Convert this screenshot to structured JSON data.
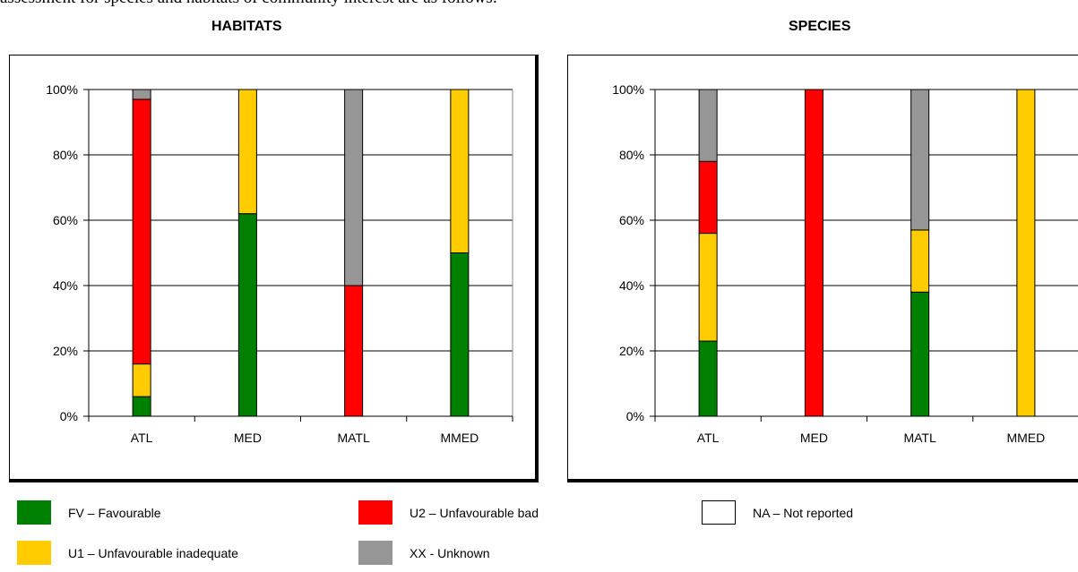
{
  "intro_text": "assessment for species and habitats of community interest are as follows:",
  "colors": {
    "FV": "#008000",
    "U1": "#FFCC00",
    "U2": "#FF0000",
    "XX": "#969696",
    "NA": "#FFFFFF"
  },
  "legend": [
    {
      "key": "FV",
      "label": "FV – Favourable"
    },
    {
      "key": "U2",
      "label": "U2 – Unfavourable bad"
    },
    {
      "key": "NA",
      "label": "NA – Not reported"
    },
    {
      "key": "U1",
      "label": "U1 – Unfavourable inadequate"
    },
    {
      "key": "XX",
      "label": "XX - Unknown"
    }
  ],
  "chart_data": [
    {
      "type": "bar",
      "stacked": true,
      "percent": true,
      "title": "HABITATS",
      "categories": [
        "ATL",
        "MED",
        "MATL",
        "MMED"
      ],
      "y_ticks": [
        "0%",
        "20%",
        "40%",
        "60%",
        "80%",
        "100%"
      ],
      "ylim": [
        0,
        100
      ],
      "grid": true,
      "series": [
        {
          "key": "FV",
          "values": [
            6,
            62,
            0,
            50
          ]
        },
        {
          "key": "U1",
          "values": [
            10,
            38,
            0,
            50
          ]
        },
        {
          "key": "U2",
          "values": [
            81,
            0,
            40,
            0
          ]
        },
        {
          "key": "XX",
          "values": [
            3,
            0,
            60,
            0
          ]
        }
      ]
    },
    {
      "type": "bar",
      "stacked": true,
      "percent": true,
      "title": "SPECIES",
      "categories": [
        "ATL",
        "MED",
        "MATL",
        "MMED"
      ],
      "y_ticks": [
        "0%",
        "20%",
        "40%",
        "60%",
        "80%",
        "100%"
      ],
      "ylim": [
        0,
        100
      ],
      "grid": true,
      "series": [
        {
          "key": "FV",
          "values": [
            23,
            0,
            38,
            0
          ]
        },
        {
          "key": "U1",
          "values": [
            33,
            0,
            19,
            100
          ]
        },
        {
          "key": "U2",
          "values": [
            22,
            100,
            0,
            0
          ]
        },
        {
          "key": "XX",
          "values": [
            22,
            0,
            43,
            0
          ]
        }
      ]
    }
  ]
}
